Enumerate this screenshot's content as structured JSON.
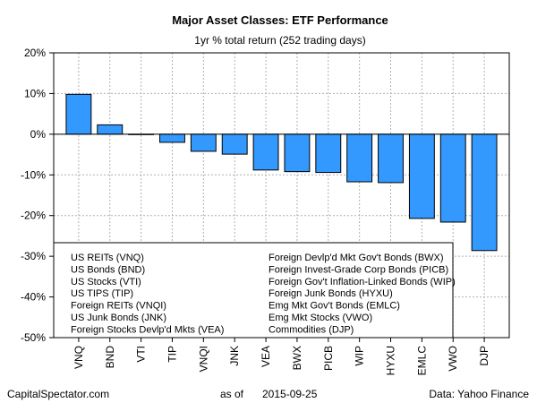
{
  "chart_data": {
    "type": "bar",
    "title": "Major Asset Classes: ETF Performance",
    "subtitle": "1yr % total return (252 trading days)",
    "categories": [
      "VNQ",
      "BND",
      "VTI",
      "TIP",
      "VNQI",
      "JNK",
      "VEA",
      "BWX",
      "PICB",
      "WIP",
      "HYXU",
      "EMLC",
      "VWO",
      "DJP"
    ],
    "values": [
      9.8,
      2.3,
      -0.1,
      -2.0,
      -4.2,
      -4.9,
      -8.8,
      -9.2,
      -9.4,
      -11.7,
      -11.9,
      -20.7,
      -21.6,
      -28.6
    ],
    "ylim": [
      -50,
      20
    ],
    "yticks": [
      20,
      10,
      0,
      -10,
      -20,
      -30,
      -40,
      -50
    ],
    "ytick_labels": [
      "20%",
      "10%",
      "0%",
      "-10%",
      "-20%",
      "-30%",
      "-40%",
      "-50%"
    ],
    "bar_color": "#3399ff",
    "grid": true,
    "legend_position": "bottom-left",
    "legend": {
      "col1": [
        "US REITs (VNQ)",
        "US Bonds (BND)",
        "US Stocks (VTI)",
        "US TIPS (TIP)",
        "Foreign REITs (VNQI)",
        "US Junk Bonds (JNK)",
        "Foreign Stocks Devlp'd Mkts (VEA)"
      ],
      "col2": [
        "Foreign Devlp'd Mkt Gov't Bonds (BWX)",
        "Foreign Invest-Grade Corp Bonds (PICB)",
        "Foreign Gov't Inflation-Linked Bonds (WIP)",
        "Foreign Junk Bonds (HYXU)",
        "Emg Mkt Gov't Bonds (EMLC)",
        "Emg Mkt Stocks (VWO)",
        "Commodities (DJP)"
      ]
    }
  },
  "footer": {
    "source_left": "CapitalSpectator.com",
    "date_prefix": "as of",
    "date": "2015-09-25",
    "source_right": "Data: Yahoo Finance"
  }
}
